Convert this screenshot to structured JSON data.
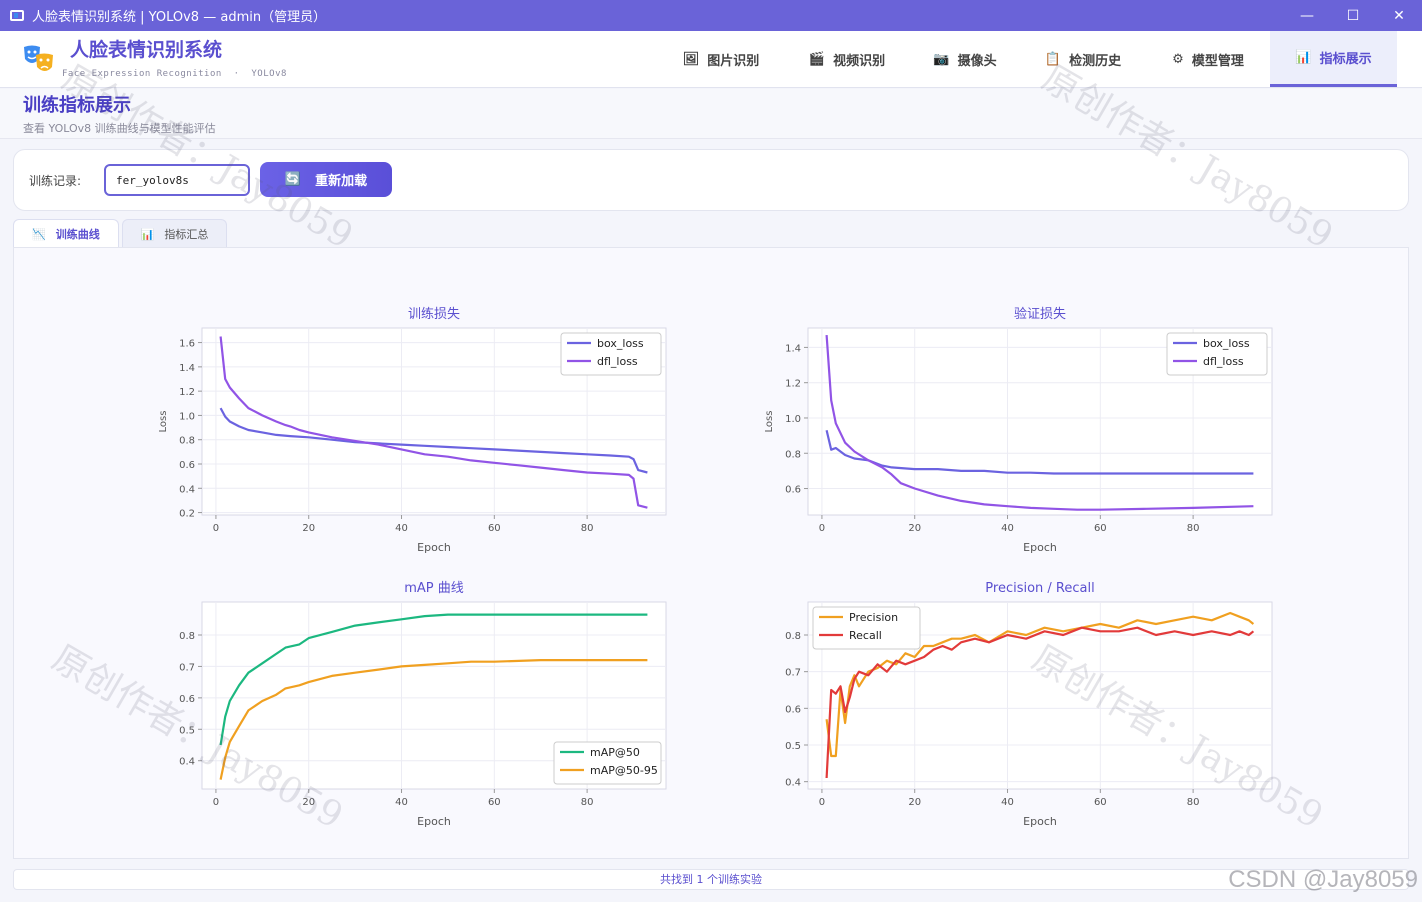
{
  "window": {
    "title": "人脸表情识别系统 | YOLOv8 — admin（管理员）",
    "min": "—",
    "max": "☐",
    "close": "✕"
  },
  "brand": {
    "title": "人脸表情识别系统",
    "subtitle": "Face Expression Recognition  ·  YOLOv8"
  },
  "nav": [
    {
      "label": "图片识别",
      "icon": "🖼"
    },
    {
      "label": "视频识别",
      "icon": "🎬"
    },
    {
      "label": "摄像头",
      "icon": "📷"
    },
    {
      "label": "检测历史",
      "icon": "📋"
    },
    {
      "label": "模型管理",
      "icon": "⚙"
    },
    {
      "label": "指标展示",
      "icon": "📊"
    }
  ],
  "page": {
    "title": "训练指标展示",
    "subtitle": "查看 YOLOv8 训练曲线与模型性能评估"
  },
  "controls": {
    "record_label": "训练记录:",
    "record_value": "fer_yolov8s",
    "reload_label": "重新加载",
    "reload_icon": "🔄"
  },
  "tabs": [
    {
      "label": "训练曲线",
      "icon": "📉"
    },
    {
      "label": "指标汇总",
      "icon": "📊"
    }
  ],
  "status": "共找到 1 个训练实验",
  "watermark": "原创作者：Jay8059",
  "csdn": "CSDN @Jay8059",
  "colors": {
    "accent": "#6a63d8",
    "box_loss": "#6b63e0",
    "dfl_loss": "#9154e6",
    "map50": "#1cb880",
    "map5095": "#f0a020",
    "precision": "#f0a020",
    "recall": "#e23a3a"
  },
  "chart_data": [
    {
      "type": "line",
      "title": "训练损失",
      "xlabel": "Epoch",
      "ylabel": "Loss",
      "xlim": [
        -3,
        97
      ],
      "ylim": [
        0.18,
        1.72
      ],
      "xticks": [
        "0",
        "20",
        "40",
        "60",
        "80"
      ],
      "yticks": [
        "0.2",
        "0.4",
        "0.6",
        "0.8",
        "1.0",
        "1.2",
        "1.4",
        "1.6"
      ],
      "legend": "top-right",
      "series": [
        {
          "name": "box_loss",
          "x": [
            1,
            2,
            3,
            5,
            7,
            10,
            13,
            16,
            20,
            25,
            30,
            35,
            40,
            45,
            50,
            55,
            60,
            65,
            70,
            75,
            80,
            85,
            89,
            90,
            91,
            93
          ],
          "y": [
            1.06,
            0.99,
            0.95,
            0.91,
            0.88,
            0.86,
            0.84,
            0.83,
            0.82,
            0.8,
            0.78,
            0.77,
            0.76,
            0.75,
            0.74,
            0.73,
            0.72,
            0.71,
            0.7,
            0.69,
            0.68,
            0.67,
            0.66,
            0.64,
            0.55,
            0.53
          ]
        },
        {
          "name": "dfl_loss",
          "x": [
            1,
            2,
            3,
            5,
            7,
            10,
            13,
            15,
            16,
            18,
            20,
            25,
            30,
            35,
            40,
            45,
            50,
            55,
            60,
            65,
            70,
            75,
            80,
            85,
            89,
            90,
            91,
            93
          ],
          "y": [
            1.65,
            1.3,
            1.23,
            1.14,
            1.06,
            1.0,
            0.95,
            0.92,
            0.91,
            0.88,
            0.86,
            0.82,
            0.79,
            0.76,
            0.72,
            0.68,
            0.66,
            0.63,
            0.61,
            0.59,
            0.57,
            0.55,
            0.53,
            0.52,
            0.51,
            0.48,
            0.26,
            0.24
          ]
        }
      ]
    },
    {
      "type": "line",
      "title": "验证损失",
      "xlabel": "Epoch",
      "ylabel": "Loss",
      "xlim": [
        -3,
        97
      ],
      "ylim": [
        0.45,
        1.51
      ],
      "xticks": [
        "0",
        "20",
        "40",
        "60",
        "80"
      ],
      "yticks": [
        "0.6",
        "0.8",
        "1.0",
        "1.2",
        "1.4"
      ],
      "legend": "top-right",
      "series": [
        {
          "name": "box_loss",
          "x": [
            1,
            2,
            3,
            5,
            7,
            10,
            13,
            15,
            20,
            25,
            30,
            35,
            40,
            45,
            50,
            55,
            60,
            70,
            80,
            93
          ],
          "y": [
            0.93,
            0.82,
            0.83,
            0.79,
            0.77,
            0.76,
            0.73,
            0.72,
            0.71,
            0.71,
            0.7,
            0.7,
            0.69,
            0.69,
            0.685,
            0.685,
            0.685,
            0.685,
            0.685,
            0.685
          ]
        },
        {
          "name": "dfl_loss",
          "x": [
            1,
            2,
            3,
            5,
            7,
            10,
            13,
            15,
            17,
            20,
            25,
            30,
            35,
            40,
            45,
            50,
            55,
            60,
            70,
            80,
            93
          ],
          "y": [
            1.47,
            1.1,
            0.97,
            0.86,
            0.81,
            0.76,
            0.72,
            0.68,
            0.63,
            0.6,
            0.56,
            0.53,
            0.51,
            0.5,
            0.49,
            0.485,
            0.48,
            0.48,
            0.485,
            0.49,
            0.5
          ]
        }
      ]
    },
    {
      "type": "line",
      "title": "mAP 曲线",
      "xlabel": "Epoch",
      "ylabel": "",
      "xlim": [
        -3,
        97
      ],
      "ylim": [
        0.31,
        0.905
      ],
      "xticks": [
        "0",
        "20",
        "40",
        "60",
        "80"
      ],
      "yticks": [
        "0.4",
        "0.5",
        "0.6",
        "0.7",
        "0.8"
      ],
      "legend": "bottom-right",
      "series": [
        {
          "name": "mAP@50",
          "x": [
            1,
            2,
            3,
            5,
            7,
            10,
            13,
            15,
            18,
            20,
            25,
            30,
            35,
            40,
            45,
            50,
            55,
            60,
            70,
            80,
            93
          ],
          "y": [
            0.45,
            0.54,
            0.59,
            0.64,
            0.68,
            0.71,
            0.74,
            0.76,
            0.77,
            0.79,
            0.81,
            0.83,
            0.84,
            0.85,
            0.86,
            0.865,
            0.865,
            0.865,
            0.865,
            0.865,
            0.865
          ]
        },
        {
          "name": "mAP@50-95",
          "x": [
            1,
            2,
            3,
            5,
            7,
            10,
            13,
            15,
            18,
            20,
            25,
            30,
            35,
            40,
            45,
            50,
            55,
            60,
            70,
            80,
            93
          ],
          "y": [
            0.34,
            0.41,
            0.46,
            0.51,
            0.56,
            0.59,
            0.61,
            0.63,
            0.64,
            0.65,
            0.67,
            0.68,
            0.69,
            0.7,
            0.705,
            0.71,
            0.715,
            0.715,
            0.72,
            0.72,
            0.72
          ]
        }
      ]
    },
    {
      "type": "line",
      "title": "Precision / Recall",
      "xlabel": "Epoch",
      "ylabel": "",
      "xlim": [
        -3,
        97
      ],
      "ylim": [
        0.38,
        0.89
      ],
      "xticks": [
        "0",
        "20",
        "40",
        "60",
        "80"
      ],
      "yticks": [
        "0.4",
        "0.5",
        "0.6",
        "0.7",
        "0.8"
      ],
      "legend": "top-left",
      "series": [
        {
          "name": "Precision",
          "x": [
            1,
            2,
            3,
            4,
            5,
            6,
            7,
            8,
            10,
            12,
            14,
            16,
            18,
            20,
            22,
            24,
            26,
            28,
            30,
            33,
            36,
            40,
            44,
            48,
            52,
            56,
            60,
            64,
            68,
            72,
            76,
            80,
            84,
            88,
            90,
            92,
            93
          ],
          "y": [
            0.57,
            0.47,
            0.47,
            0.65,
            0.56,
            0.66,
            0.69,
            0.66,
            0.7,
            0.71,
            0.73,
            0.72,
            0.75,
            0.74,
            0.77,
            0.77,
            0.78,
            0.79,
            0.79,
            0.8,
            0.78,
            0.81,
            0.8,
            0.82,
            0.81,
            0.82,
            0.83,
            0.82,
            0.84,
            0.83,
            0.84,
            0.85,
            0.84,
            0.86,
            0.85,
            0.84,
            0.83
          ]
        },
        {
          "name": "Recall",
          "x": [
            1,
            2,
            3,
            4,
            5,
            6,
            7,
            8,
            10,
            12,
            14,
            16,
            18,
            20,
            22,
            24,
            26,
            28,
            30,
            33,
            36,
            40,
            44,
            48,
            52,
            56,
            60,
            64,
            68,
            72,
            76,
            80,
            84,
            88,
            90,
            92,
            93
          ],
          "y": [
            0.41,
            0.65,
            0.64,
            0.66,
            0.59,
            0.63,
            0.68,
            0.7,
            0.69,
            0.72,
            0.7,
            0.73,
            0.72,
            0.73,
            0.74,
            0.76,
            0.77,
            0.76,
            0.78,
            0.79,
            0.78,
            0.8,
            0.79,
            0.81,
            0.8,
            0.82,
            0.81,
            0.81,
            0.82,
            0.8,
            0.81,
            0.8,
            0.81,
            0.8,
            0.81,
            0.8,
            0.81
          ]
        }
      ]
    }
  ]
}
